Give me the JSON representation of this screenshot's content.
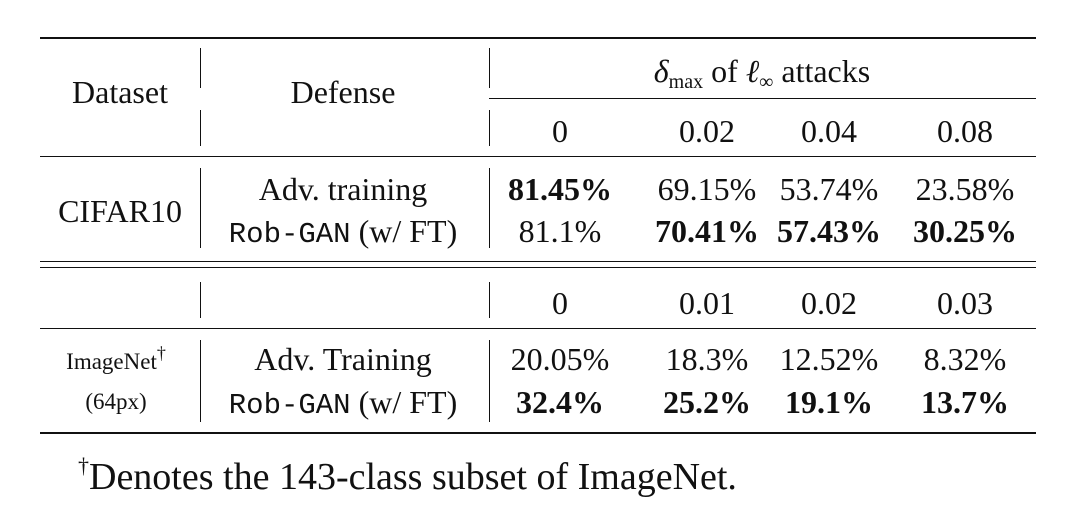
{
  "header": {
    "dataset": "Dataset",
    "defense": "Defense",
    "attack_delta": "δ",
    "attack_delta_sub": "max",
    "attack_of": "of",
    "attack_ell": "ℓ",
    "attack_inf": "∞",
    "attack_rest": "attacks"
  },
  "cifar": {
    "dataset": "CIFAR10",
    "eps": [
      "0",
      "0.02",
      "0.04",
      "0.08"
    ],
    "rows": [
      {
        "defense_mono": "",
        "defense_text": "Adv. training",
        "values": [
          "81.45%",
          "69.15%",
          "53.74%",
          "23.58%"
        ],
        "bold": [
          true,
          false,
          false,
          false
        ]
      },
      {
        "defense_mono": "Rob-GAN",
        "defense_text": " (w/ FT)",
        "values": [
          "81.1%",
          "70.41%",
          "57.43%",
          "30.25%"
        ],
        "bold": [
          false,
          true,
          true,
          true
        ]
      }
    ]
  },
  "imagenet": {
    "dataset_line1": "ImageNet",
    "dataset_mark": "†",
    "dataset_line2": "(64px)",
    "eps": [
      "0",
      "0.01",
      "0.02",
      "0.03"
    ],
    "rows": [
      {
        "defense_mono": "",
        "defense_text": "Adv. Training",
        "values": [
          "20.05%",
          "18.3%",
          "12.52%",
          "8.32%"
        ],
        "bold": [
          false,
          false,
          false,
          false
        ]
      },
      {
        "defense_mono": "Rob-GAN",
        "defense_text": " (w/ FT)",
        "values": [
          "32.4%",
          "25.2%",
          "19.1%",
          "13.7%"
        ],
        "bold": [
          true,
          true,
          true,
          true
        ]
      }
    ]
  },
  "footnote": {
    "mark": "†",
    "text": "Denotes the 143-class subset of ImageNet."
  },
  "chart_data": {
    "type": "table",
    "columns": [
      "Dataset",
      "Defense",
      "δmax of ℓ∞ attacks"
    ],
    "rows": [
      [
        "CIFAR10",
        "Adv. training",
        "81.45%",
        "69.15%",
        "53.74%",
        "23.58%"
      ],
      [
        "CIFAR10",
        "Rob-GAN (w/ FT)",
        "81.1%",
        "70.41%",
        "57.43%",
        "30.25%"
      ],
      [
        "ImageNet (64px)",
        "Adv. Training",
        "20.05%",
        "18.3%",
        "12.52%",
        "8.32%"
      ],
      [
        "ImageNet (64px)",
        "Rob-GAN (w/ FT)",
        "32.4%",
        "25.2%",
        "19.1%",
        "13.7%"
      ]
    ]
  }
}
